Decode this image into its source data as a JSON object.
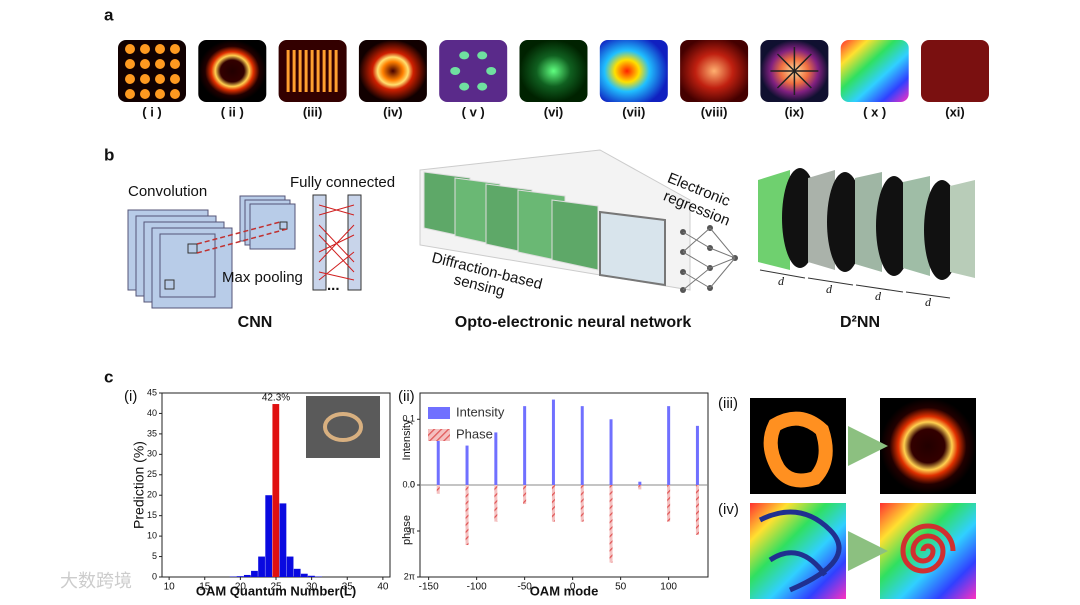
{
  "panel_a": {
    "label": "a",
    "items": [
      "( i )",
      "( ii )",
      "(iii)",
      "(iv)",
      "( v )",
      "(vi)",
      "(vii)",
      "(viii)",
      "(ix)",
      "( x )",
      "(xi)"
    ]
  },
  "panel_b": {
    "label": "b",
    "cnn": {
      "convolution": "Convolution",
      "fully_connected": "Fully connected",
      "max_pooling": "Max pooling",
      "ellipsis": "...",
      "title": "CNN"
    },
    "oenn": {
      "regression": [
        "Electronic",
        "regression"
      ],
      "sensing": [
        "Diffraction-based",
        "sensing"
      ],
      "title": "Opto-electronic neural network"
    },
    "d2nn": {
      "distance_labels": [
        "d",
        "d",
        "d",
        "d"
      ],
      "title": "D²NN"
    }
  },
  "panel_c": {
    "label": "c",
    "sub_labels": [
      "(i)",
      "(ii)",
      "(iii)",
      "(iv)"
    ]
  },
  "watermark": "大数跨境",
  "chart_data": [
    {
      "type": "bar",
      "xlabel": "OAM Quantum Number(L)",
      "ylabel": "Prediction (%)",
      "x": [
        19,
        20,
        21,
        22,
        23,
        24,
        25,
        26,
        27,
        28,
        29,
        30,
        31
      ],
      "values": [
        0.1,
        0.2,
        0.5,
        1.5,
        5,
        20,
        42.3,
        18,
        5,
        2,
        0.8,
        0.3,
        0.1
      ],
      "value_labels": [
        null,
        null,
        null,
        null,
        null,
        null,
        "42.3%",
        null,
        null,
        null,
        null,
        null,
        null
      ],
      "colors": [
        "#0a0ae0",
        "#0a0ae0",
        "#0a0ae0",
        "#0a0ae0",
        "#0a0ae0",
        "#0a0ae0",
        "#e01010",
        "#0a0ae0",
        "#0a0ae0",
        "#0a0ae0",
        "#0a0ae0",
        "#0a0ae0",
        "#0a0ae0"
      ],
      "xlim": [
        9,
        41
      ],
      "xticks": [
        10,
        15,
        20,
        25,
        30,
        35,
        40
      ],
      "ylim": [
        0,
        45
      ],
      "yticks": [
        0,
        5,
        10,
        15,
        20,
        25,
        30,
        35,
        40,
        45
      ]
    },
    {
      "type": "stem",
      "xlabel": "OAM mode",
      "ylabel": "Intensity",
      "y2label": "phase",
      "x": [
        -140,
        -110,
        -80,
        -50,
        -20,
        10,
        40,
        70,
        100,
        130
      ],
      "series": [
        {
          "name": "Intensity",
          "color": "#7070ff",
          "values": [
            0.08,
            0.06,
            0.08,
            0.12,
            0.13,
            0.12,
            0.1,
            0.005,
            0.12,
            0.09
          ]
        },
        {
          "name": "Phase",
          "color": "#e05555",
          "axis": "y2",
          "values": [
            0.6,
            4.1,
            2.5,
            1.3,
            2.5,
            2.5,
            5.3,
            0.3,
            2.5,
            3.4
          ]
        }
      ],
      "xlim": [
        -159,
        141
      ],
      "xticks": [
        -150,
        -100,
        -50,
        0,
        50,
        100
      ],
      "ylim": [
        0,
        0.14
      ],
      "yticks": [
        {
          "value": 0,
          "label": "0.0"
        },
        0.1
      ],
      "y2lim": [
        0,
        6.2832
      ],
      "y2ticks": [
        0,
        {
          "value": 3.1416,
          "label": "π"
        },
        {
          "value": 6.2832,
          "label": "2π"
        }
      ],
      "y2_inverted": true,
      "legend": "upper left"
    }
  ]
}
